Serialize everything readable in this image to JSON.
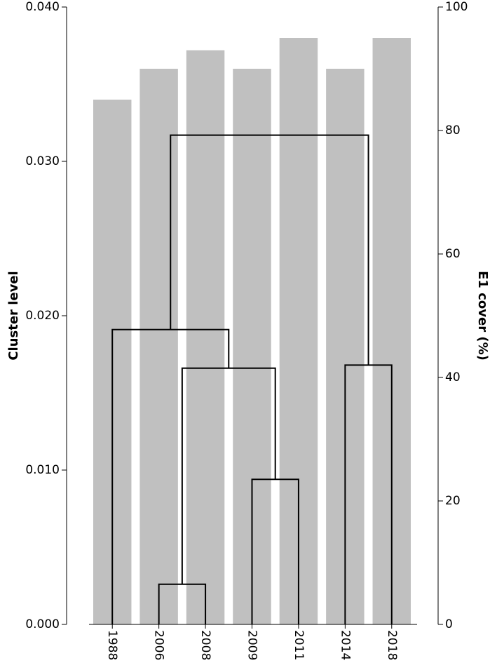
{
  "chart_data": {
    "type": "bar",
    "categories": [
      "1988",
      "2006",
      "2008",
      "2009",
      "2011",
      "2014",
      "2018"
    ],
    "values": [
      85,
      90,
      93,
      90,
      95,
      90,
      95
    ],
    "color": "#c0c0c0",
    "bar_axis": "y2",
    "ylabel": "Cluster level",
    "y2label": "E1 cover (%)",
    "ylim": [
      0,
      0.04
    ],
    "yticks": [
      {
        "value": 0,
        "label": "0.000"
      },
      {
        "value": 0.01,
        "label": "0.010"
      },
      {
        "value": 0.02,
        "label": "0.020"
      },
      {
        "value": 0.03,
        "label": "0.030"
      },
      {
        "value": 0.04,
        "label": "0.040"
      }
    ],
    "y2lim": [
      0,
      100
    ],
    "y2ticks": [
      0,
      20,
      40,
      60,
      80,
      100
    ],
    "dendrogram": {
      "color": "#000000",
      "merges": [
        {
          "left": [
            "2006"
          ],
          "right": [
            "2008"
          ],
          "height": 0.0026
        },
        {
          "left": [
            "2009"
          ],
          "right": [
            "2011"
          ],
          "height": 0.0094
        },
        {
          "left": [
            "2006",
            "2008"
          ],
          "right": [
            "2009",
            "2011"
          ],
          "height": 0.0166
        },
        {
          "left": [
            "2014"
          ],
          "right": [
            "2018"
          ],
          "height": 0.0168
        },
        {
          "left": [
            "1988"
          ],
          "right": [
            "2006",
            "2008",
            "2009",
            "2011"
          ],
          "height": 0.0191
        },
        {
          "left": [
            "1988",
            "2006",
            "2008",
            "2009",
            "2011"
          ],
          "right": [
            "2014",
            "2018"
          ],
          "height": 0.0317
        }
      ]
    }
  }
}
